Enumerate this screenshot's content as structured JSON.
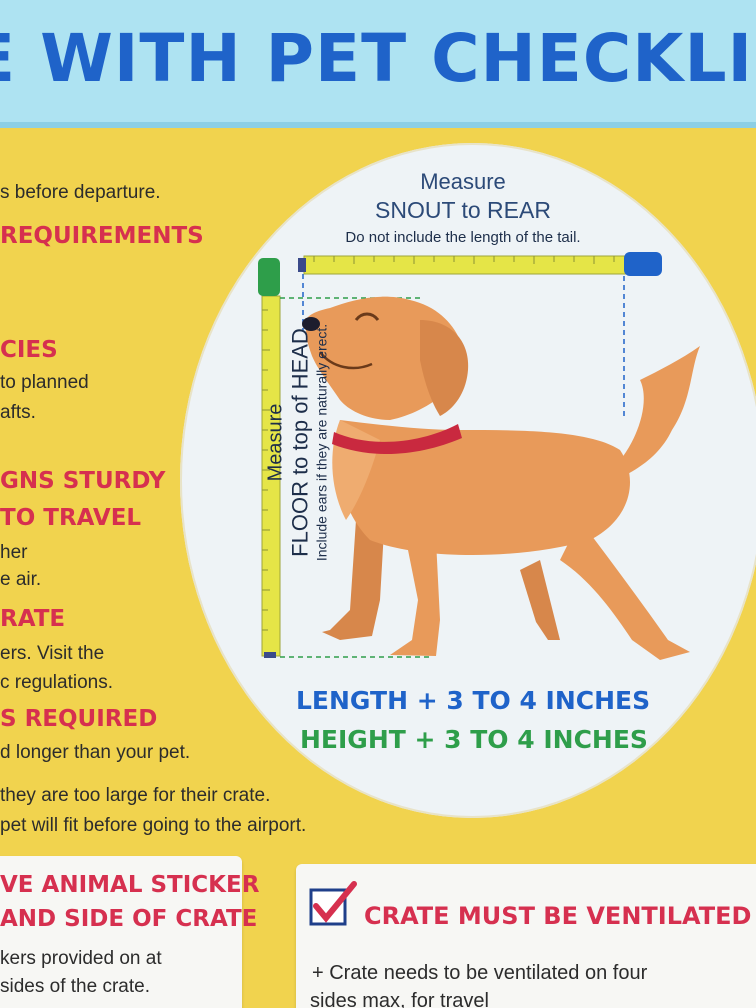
{
  "banner": {
    "title": "E WITH PET CHECKLIST:"
  },
  "left_column": {
    "line1": "s before departure.",
    "head1": "REQUIREMENTS",
    "head2": "CIES",
    "line2": "to planned",
    "line3": "afts.",
    "head3": "GNS STURDY",
    "head4": "TO TRAVEL",
    "line4": "her",
    "line5": "e air.",
    "head5": "RATE",
    "line6": "ers. Visit the",
    "line7": "c regulations.",
    "head6": "S REQUIRED",
    "line8": "d longer than your pet.",
    "line9": " they are too large for their crate.",
    "line10": "pet will fit before going to the airport."
  },
  "measure": {
    "top_line1": "Measure",
    "top_line2": "SNOUT to REAR",
    "top_note": "Do not include the length of the tail.",
    "side_line1": "Measure",
    "side_line2": "FLOOR to top of HEAD",
    "side_note": "Include ears if they are naturally erect.",
    "length_label": "LENGTH + 3 TO 4 INCHES",
    "height_label": "HEIGHT + 3 TO 4 INCHES"
  },
  "cards": {
    "left_title1": "VE ANIMAL STICKER",
    "left_title2": "AND SIDE OF CRATE",
    "left_body1": "kers provided on at",
    "left_body2": "sides of the crate.",
    "right_title": "CRATE MUST BE VENTILATED",
    "right_body1": "+ Crate needs to be ventilated on four",
    "right_body2": "sides max, for travel"
  },
  "colors": {
    "accent_blue": "#1f63c9",
    "accent_red": "#d6304f",
    "accent_green": "#2e9e4a",
    "background_yellow": "#f1d34e",
    "dog_orange": "#e89a5a"
  }
}
